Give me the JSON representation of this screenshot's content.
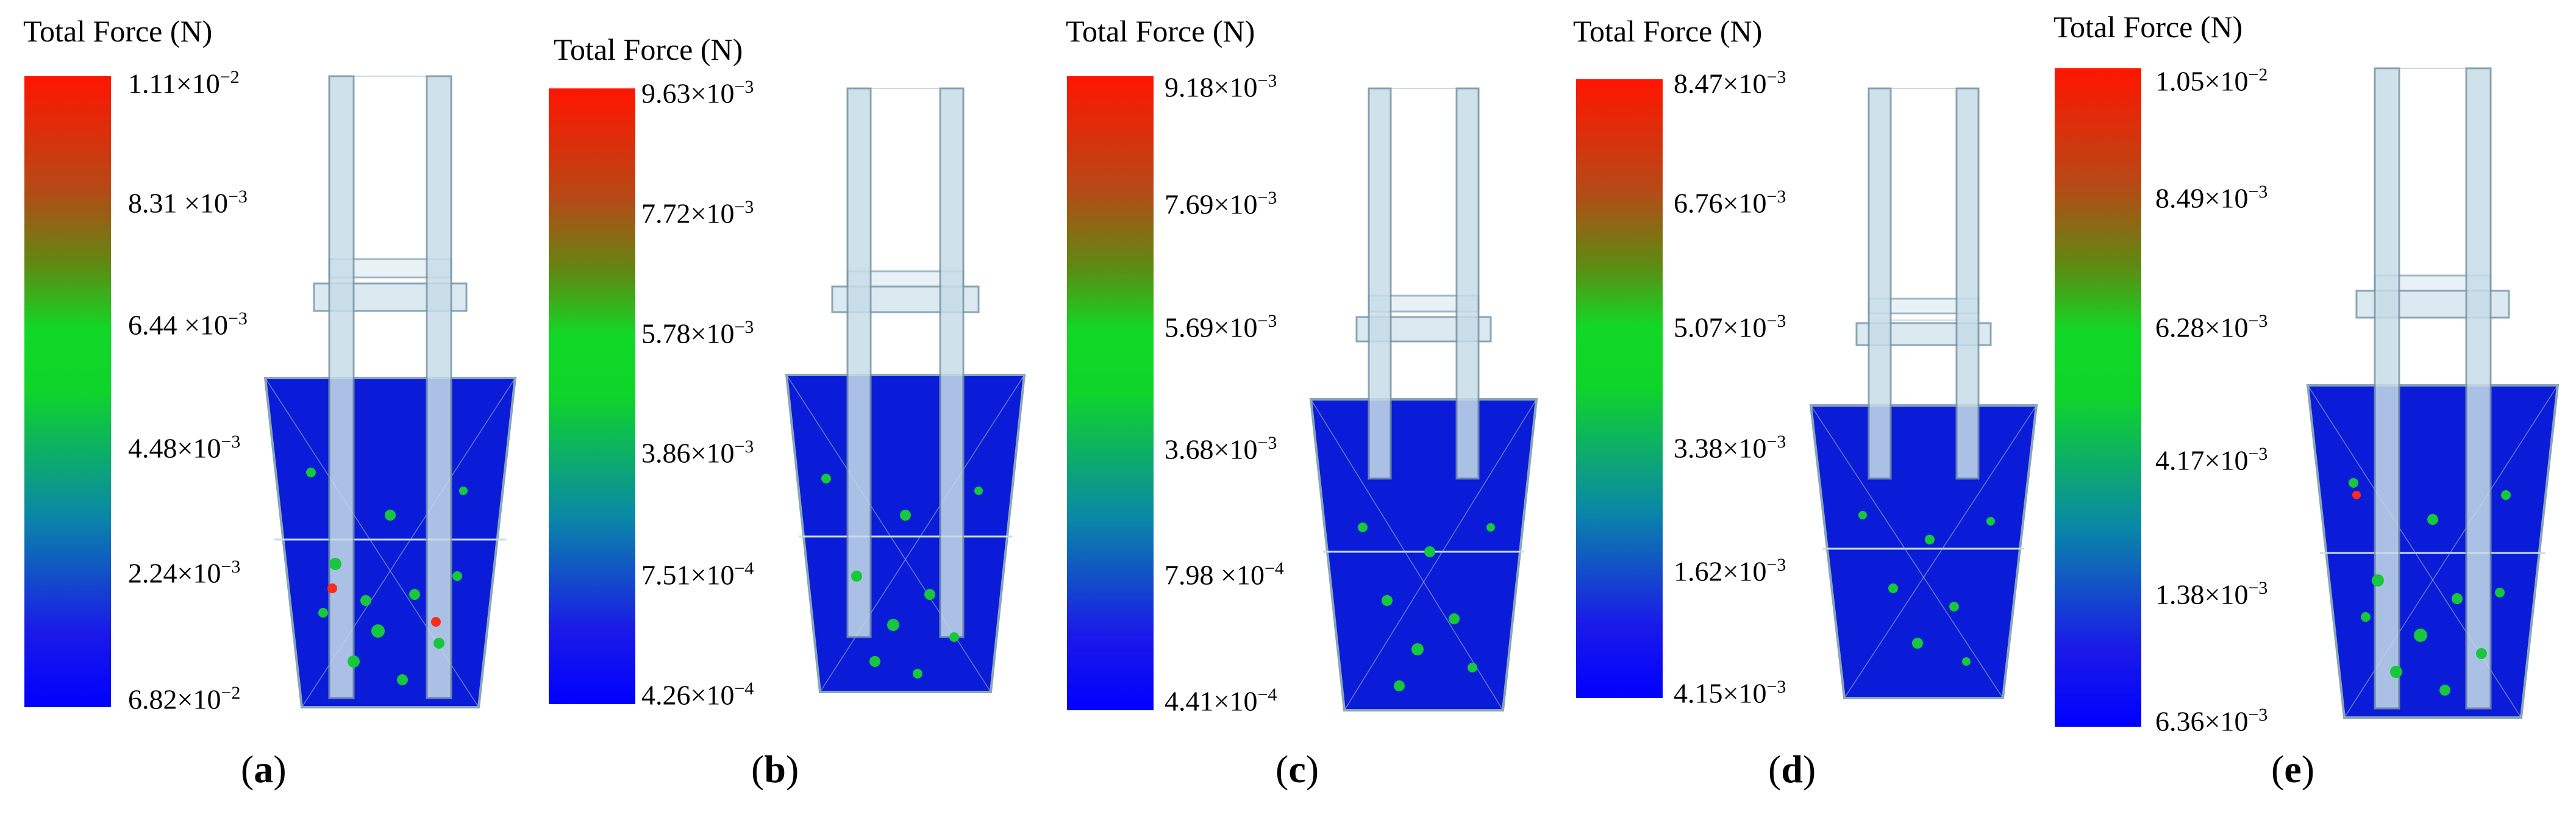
{
  "colorbar_title": "Total Force (N)",
  "panels": [
    {
      "label": "a",
      "ticks": [
        "1.11×10",
        "8.31 ×10",
        "6.44 ×10",
        "4.48×10",
        "2.24×10",
        "6.82×10"
      ],
      "exps": [
        "−2",
        "−3",
        "−3",
        "−3",
        "−3",
        "−2"
      ]
    },
    {
      "label": "b",
      "ticks": [
        "9.63×10",
        "7.72×10",
        "5.78×10",
        "3.86×10",
        "7.51×10",
        "4.26×10"
      ],
      "exps": [
        "−3",
        "−3",
        "−3",
        "−3",
        "−4",
        "−4"
      ]
    },
    {
      "label": "c",
      "ticks": [
        "9.18×10",
        "7.69×10",
        "5.69×10",
        "3.68×10",
        "7.98 ×10",
        "4.41×10"
      ],
      "exps": [
        "−3",
        "−3",
        "−3",
        "−3",
        "−4",
        "−4"
      ]
    },
    {
      "label": "d",
      "ticks": [
        "8.47×10",
        "6.76×10",
        "5.07×10",
        "3.38×10",
        "1.62×10",
        "4.15×10"
      ],
      "exps": [
        "−3",
        "−3",
        "−3",
        "−3",
        "−3",
        "−3"
      ]
    },
    {
      "label": "e",
      "ticks": [
        "1.05×10",
        "8.49×10",
        "6.28×10",
        "4.17×10",
        "1.38×10",
        "6.36×10"
      ],
      "exps": [
        "−2",
        "−3",
        "−3",
        "−3",
        "−3",
        "−3"
      ]
    }
  ],
  "colors": {
    "high": "#ff1500",
    "mid": "#10d828",
    "low": "#0000ff",
    "structure": "#c7dde8"
  }
}
